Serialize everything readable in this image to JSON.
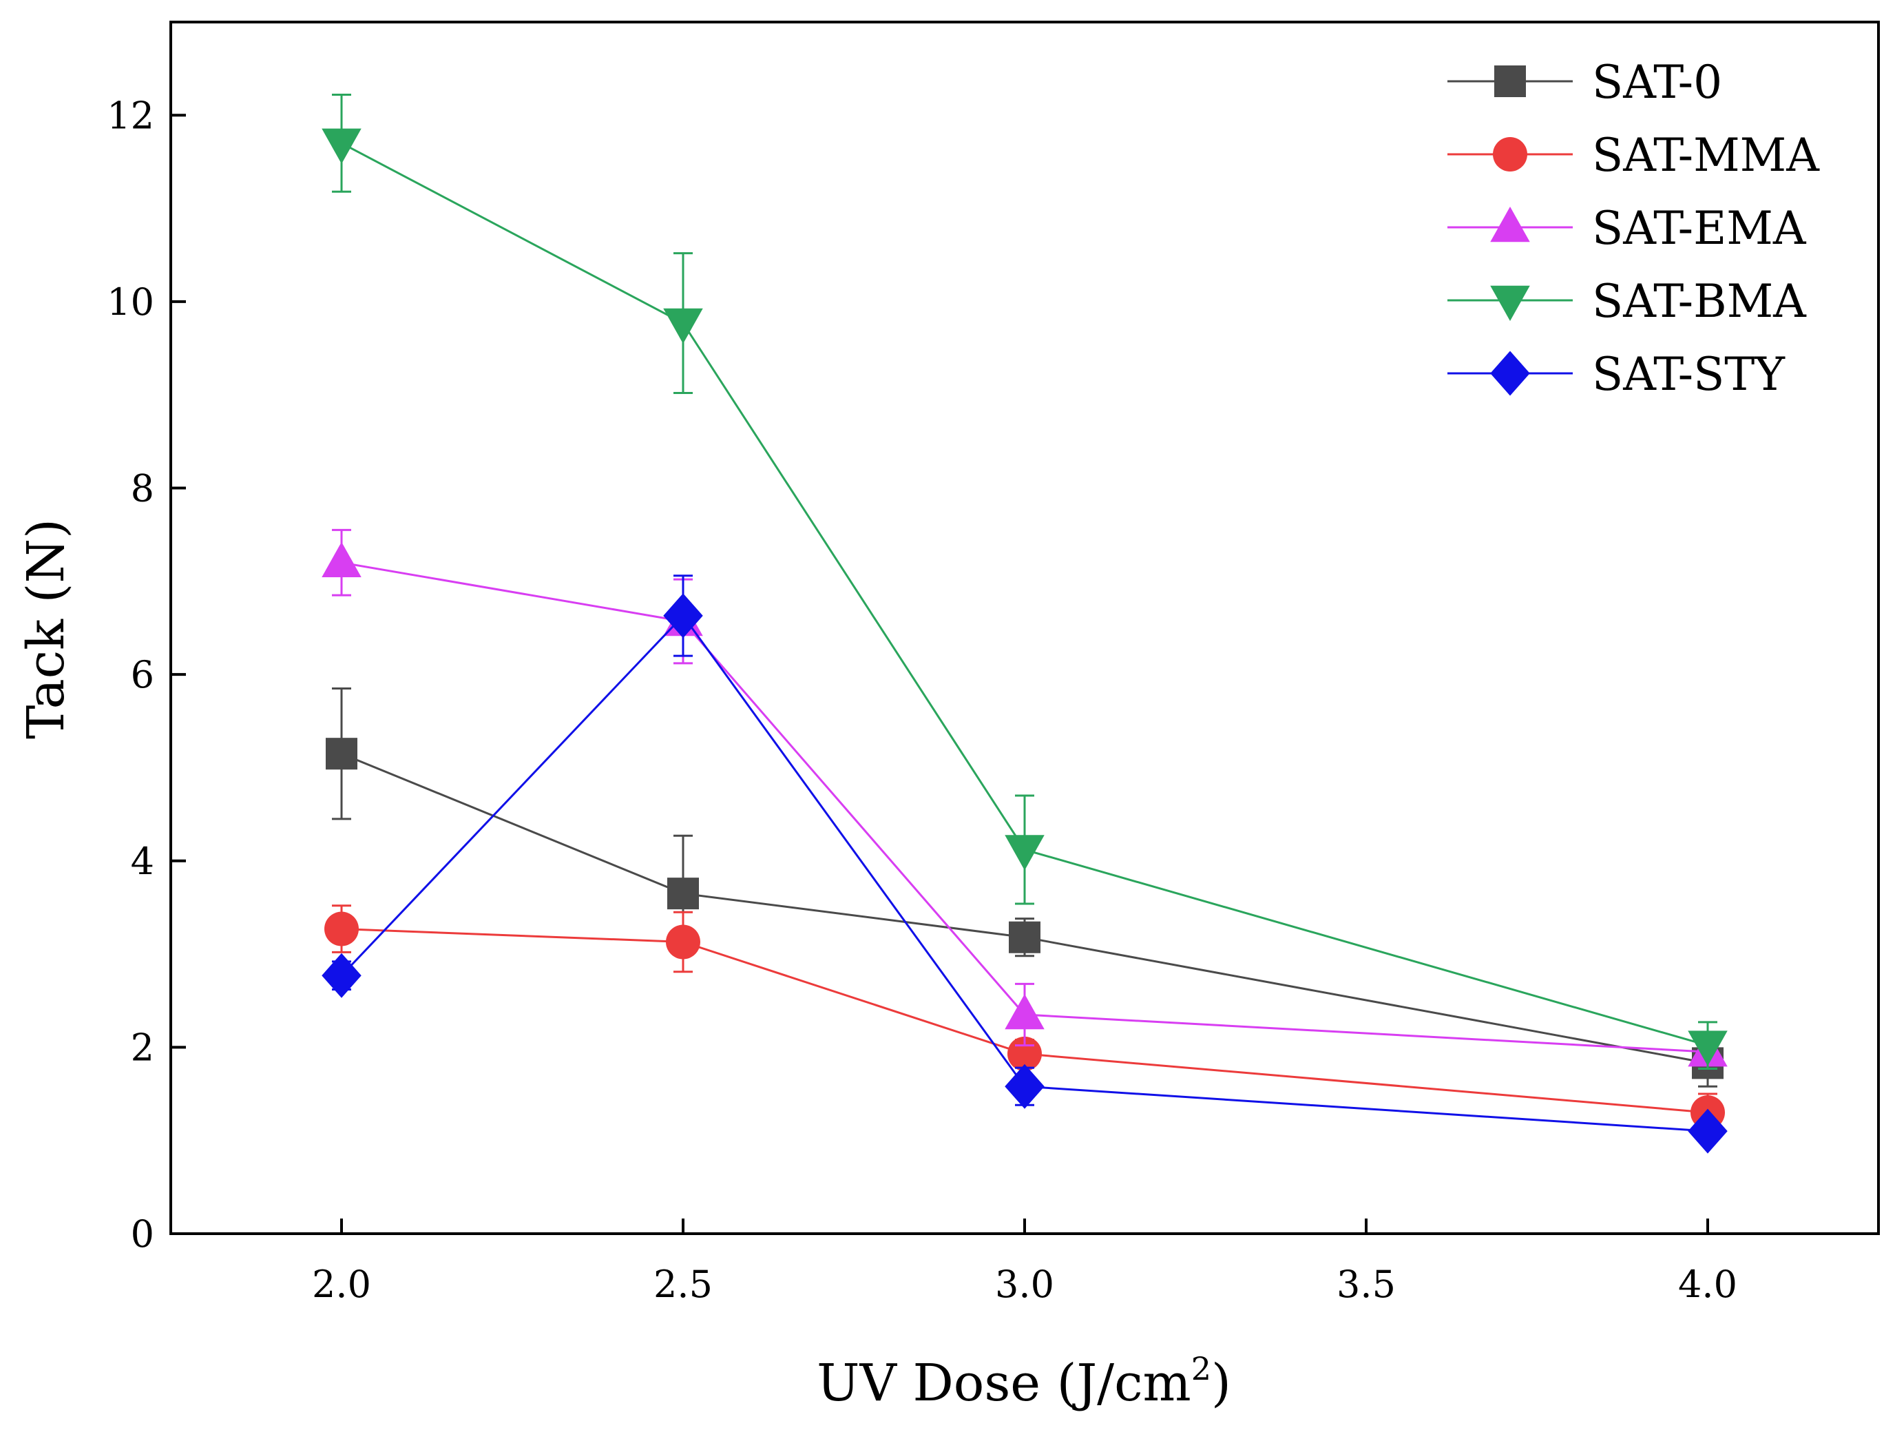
{
  "chart_data": {
    "type": "line",
    "title": "",
    "xlabel": "UV Dose (J/cm",
    "xlabel_superscript": "2",
    "xlabel_close": ")",
    "ylabel": "Tack (N)",
    "xlim": [
      1.75,
      4.25
    ],
    "ylim": [
      0,
      13
    ],
    "xticks": [
      2.0,
      2.5,
      3.0,
      3.5,
      4.0
    ],
    "xtick_labels": [
      "2.0",
      "2.5",
      "3.0",
      "3.5",
      "4.0"
    ],
    "yticks": [
      0,
      2,
      4,
      6,
      8,
      10,
      12
    ],
    "ytick_labels": [
      "0",
      "2",
      "4",
      "6",
      "8",
      "10",
      "12"
    ],
    "grid": false,
    "legend_position": "top-right",
    "x": [
      2.0,
      2.5,
      3.0,
      4.0
    ],
    "series": [
      {
        "name": "SAT-0",
        "color": "#4a4a4a",
        "marker": "square",
        "values": [
          5.15,
          3.65,
          3.18,
          1.83
        ],
        "errors": [
          0.7,
          0.62,
          0.2,
          0.25
        ]
      },
      {
        "name": "SAT-MMA",
        "color": "#ec3b3b",
        "marker": "circle",
        "values": [
          3.27,
          3.13,
          1.93,
          1.3
        ],
        "errors": [
          0.25,
          0.32,
          0.15,
          0.2
        ]
      },
      {
        "name": "SAT-EMA",
        "color": "#d83ef2",
        "marker": "triangle-up",
        "values": [
          7.2,
          6.57,
          2.35,
          1.95
        ],
        "errors": [
          0.35,
          0.45,
          0.33,
          0.1
        ]
      },
      {
        "name": "SAT-BMA",
        "color": "#2aa55c",
        "marker": "triangle-down",
        "values": [
          11.7,
          9.77,
          4.12,
          2.02
        ],
        "errors": [
          0.52,
          0.75,
          0.58,
          0.25
        ]
      },
      {
        "name": "SAT-STY",
        "color": "#1010e8",
        "marker": "diamond",
        "values": [
          2.77,
          6.63,
          1.58,
          1.1
        ],
        "errors": [
          0.15,
          0.43,
          0.2,
          0.08
        ]
      }
    ]
  }
}
